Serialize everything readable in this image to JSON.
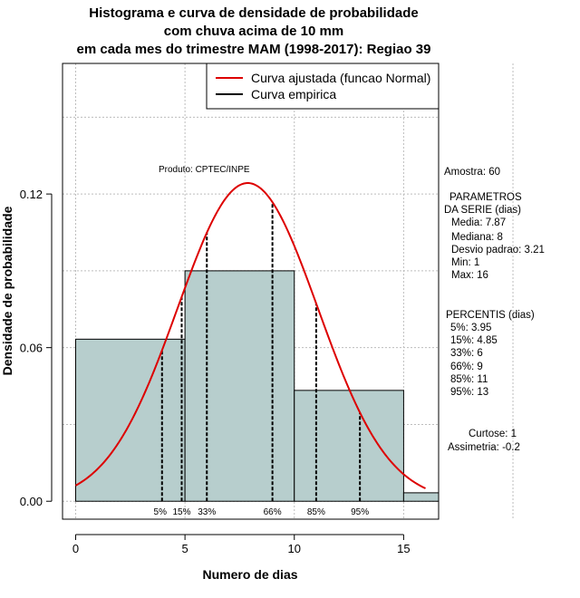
{
  "title_lines": [
    "Histograma e curva de densidade de probabilidade",
    "com chuva acima de 10 mm",
    "em cada mes do trimestre MAM (1998-2017): Regiao 39"
  ],
  "legend": {
    "fitted": "Curva ajustada (funcao Normal)",
    "empirical": "Curva empirica",
    "fitted_color": "#dd0000",
    "empirical_color": "#000000"
  },
  "product_label": "Produto: CPTEC/INPE",
  "stats": {
    "sample": "Amostra: 60",
    "params_header_1": "PARAMETROS",
    "params_header_2": "DA SERIE (dias)",
    "mean": "Media: 7.87",
    "median": "Mediana: 8",
    "sd": "Desvio padrao: 3.21",
    "min": "Min: 1",
    "max": "Max: 16",
    "percentis_header": "PERCENTIS (dias)",
    "p5": "5%: 3.95",
    "p15": "15%: 4.85",
    "p33": "33%: 6",
    "p66": "66%: 9",
    "p85": "85%: 11",
    "p95": "95%: 13",
    "kurtosis": "Curtose: 1",
    "skewness": "Assimetria: -0.2"
  },
  "chart_data": {
    "type": "bar",
    "title": "Histograma e curva de densidade de probabilidade com chuva acima de 10 mm em cada mes do trimestre MAM (1998-2017): Regiao 39",
    "xlabel": "Numero de dias",
    "ylabel": "Densidade de probabilidade",
    "xlim": [
      -0.6,
      16.6
    ],
    "ylim": [
      -0.007,
      0.171
    ],
    "x_ticks": [
      0,
      5,
      10,
      15
    ],
    "x_tick_labels": [
      "0",
      "5",
      "10",
      "15"
    ],
    "y_ticks": [
      0.0,
      0.06,
      0.12
    ],
    "y_tick_labels": [
      "0.00",
      "0.06",
      "0.12"
    ],
    "grid": true,
    "bar_color": "#b7cecd",
    "histogram_bins": [
      {
        "from": 0,
        "to": 5,
        "density": 0.0633
      },
      {
        "from": 5,
        "to": 10,
        "density": 0.09
      },
      {
        "from": 10,
        "to": 15,
        "density": 0.0433
      },
      {
        "from": 15,
        "to": 16.6,
        "density": 0.0033
      }
    ],
    "normal_fit": {
      "mean": 7.87,
      "sd": 3.21,
      "x_range": [
        0,
        16
      ]
    },
    "percentiles": [
      {
        "label": "5%",
        "value": 3.95
      },
      {
        "label": "15%",
        "value": 4.85
      },
      {
        "label": "33%",
        "value": 6
      },
      {
        "label": "66%",
        "value": 9
      },
      {
        "label": "85%",
        "value": 11
      },
      {
        "label": "95%",
        "value": 13
      }
    ]
  }
}
